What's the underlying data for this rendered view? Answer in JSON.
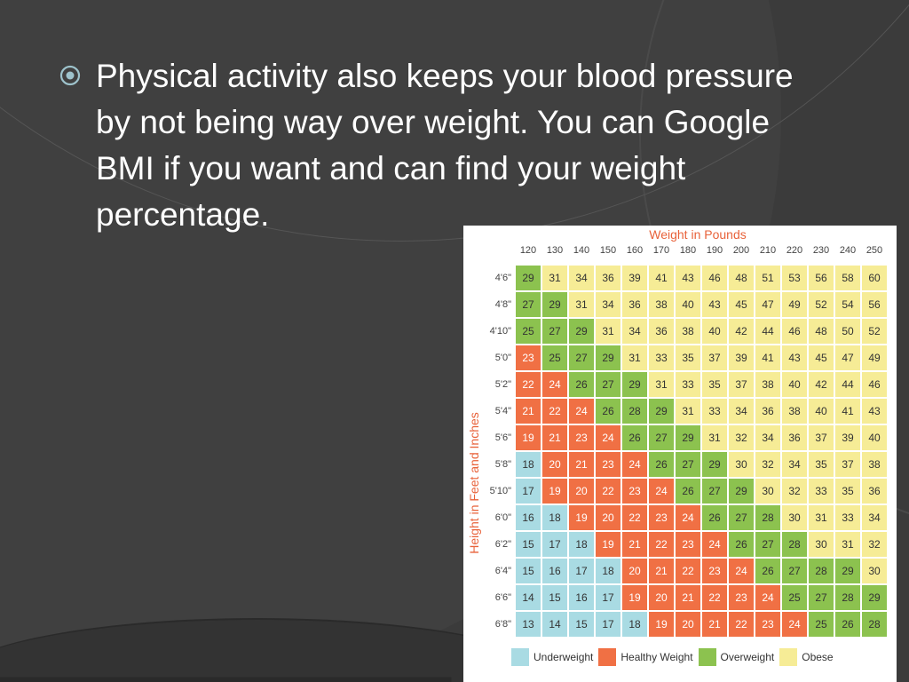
{
  "slide": {
    "bullet_icon": "circle-dot-bullet-icon",
    "bullet_text": "Physical activity also keeps your blood pressure by not being way over weight. You can Google BMI if you want and can find your weight percentage."
  },
  "chart_data": {
    "type": "heatmap",
    "title": "Weight in Pounds",
    "xlabel": "Weight in Pounds",
    "ylabel": "Height in Feet and Inches",
    "x": [
      "120",
      "130",
      "140",
      "150",
      "160",
      "170",
      "180",
      "190",
      "200",
      "210",
      "220",
      "230",
      "240",
      "250"
    ],
    "y": [
      "4'6\"",
      "4'8\"",
      "4'10\"",
      "5'0\"",
      "5'2\"",
      "5'4\"",
      "5'6\"",
      "5'8\"",
      "5'10\"",
      "6'0\"",
      "6'2\"",
      "6'4\"",
      "6'6\"",
      "6'8\""
    ],
    "values": [
      [
        29,
        31,
        34,
        36,
        39,
        41,
        43,
        46,
        48,
        51,
        53,
        56,
        58,
        60
      ],
      [
        27,
        29,
        31,
        34,
        36,
        38,
        40,
        43,
        45,
        47,
        49,
        52,
        54,
        56
      ],
      [
        25,
        27,
        29,
        31,
        34,
        36,
        38,
        40,
        42,
        44,
        46,
        48,
        50,
        52
      ],
      [
        23,
        25,
        27,
        29,
        31,
        33,
        35,
        37,
        39,
        41,
        43,
        45,
        47,
        49
      ],
      [
        22,
        24,
        26,
        27,
        29,
        31,
        33,
        35,
        37,
        38,
        40,
        42,
        44,
        46
      ],
      [
        21,
        22,
        24,
        26,
        28,
        29,
        31,
        33,
        34,
        36,
        38,
        40,
        41,
        43
      ],
      [
        19,
        21,
        23,
        24,
        26,
        27,
        29,
        31,
        32,
        34,
        36,
        37,
        39,
        40
      ],
      [
        18,
        20,
        21,
        23,
        24,
        26,
        27,
        29,
        30,
        32,
        34,
        35,
        37,
        38
      ],
      [
        17,
        19,
        20,
        22,
        23,
        24,
        26,
        27,
        29,
        30,
        32,
        33,
        35,
        36
      ],
      [
        16,
        18,
        19,
        20,
        22,
        23,
        24,
        26,
        27,
        28,
        30,
        31,
        33,
        34
      ],
      [
        15,
        17,
        18,
        19,
        21,
        22,
        23,
        24,
        26,
        27,
        28,
        30,
        31,
        32
      ],
      [
        15,
        16,
        17,
        18,
        20,
        21,
        22,
        23,
        24,
        26,
        27,
        28,
        29,
        30
      ],
      [
        14,
        15,
        16,
        17,
        19,
        20,
        21,
        22,
        23,
        24,
        25,
        27,
        28,
        29
      ],
      [
        13,
        14,
        15,
        17,
        18,
        19,
        20,
        21,
        22,
        23,
        24,
        25,
        26,
        28
      ]
    ],
    "categories": [
      {
        "name": "Underweight",
        "max": 18,
        "color": "#a9dbe3"
      },
      {
        "name": "Healthy Weight",
        "max": 24,
        "color": "#f07044"
      },
      {
        "name": "Overweight",
        "max": 29,
        "color": "#8cc24f"
      },
      {
        "name": "Obese",
        "max": 100,
        "color": "#f6ec96"
      }
    ],
    "legend": [
      "Underweight",
      "Healthy Weight",
      "Overweight",
      "Obese"
    ]
  }
}
